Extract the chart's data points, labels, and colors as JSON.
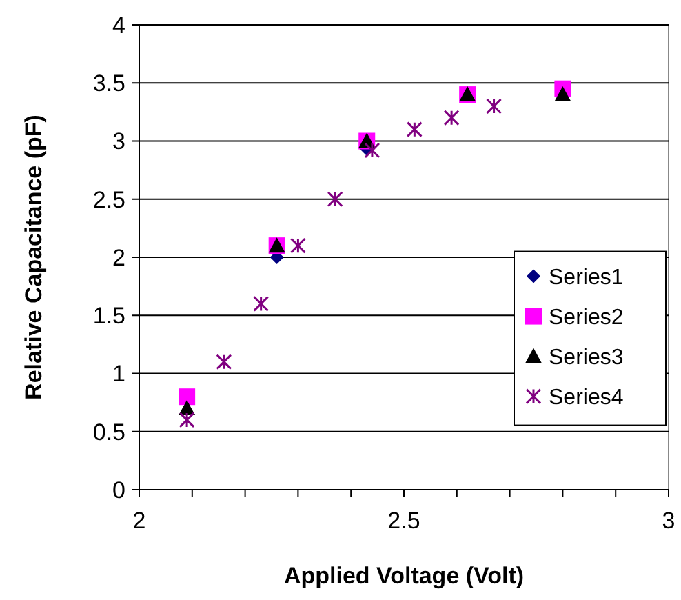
{
  "chart_data": {
    "type": "scatter",
    "xlabel": "Applied Voltage (Volt)",
    "ylabel": "Relative Capacitance (pF)",
    "xlim": [
      2,
      3
    ],
    "xticks": [
      2,
      {
        "value": 2.1,
        "label": null
      },
      {
        "value": 2.2,
        "label": null
      },
      {
        "value": 2.3,
        "label": null
      },
      {
        "value": 2.4,
        "label": null
      },
      2.5,
      {
        "value": 2.6,
        "label": null
      },
      {
        "value": 2.7,
        "label": null
      },
      {
        "value": 2.8,
        "label": null
      },
      {
        "value": 2.9,
        "label": null
      },
      3
    ],
    "ylim": [
      0,
      4
    ],
    "yticks": [
      0,
      0.5,
      1,
      1.5,
      2,
      2.5,
      3,
      3.5,
      4
    ],
    "grid": "y",
    "legend": "right",
    "series": [
      {
        "name": "Series1",
        "color": "#000080",
        "marker": "diamond",
        "x": [
          2.26,
          2.43
        ],
        "values": [
          2.0,
          2.93
        ]
      },
      {
        "name": "Series2",
        "color": "#ff00ff",
        "marker": "square",
        "x": [
          2.09,
          2.26,
          2.43,
          2.62,
          2.8
        ],
        "values": [
          0.8,
          2.1,
          3.0,
          3.4,
          3.45
        ]
      },
      {
        "name": "Series3",
        "color": "#000000",
        "marker": "triangle",
        "x": [
          2.09,
          2.26,
          2.43,
          2.62,
          2.8
        ],
        "values": [
          0.7,
          2.1,
          3.0,
          3.4,
          3.4
        ]
      },
      {
        "name": "Series4",
        "color": "#800080",
        "marker": "cross",
        "x": [
          2.09,
          2.16,
          2.23,
          2.3,
          2.37,
          2.44,
          2.52,
          2.59,
          2.67
        ],
        "values": [
          0.6,
          1.1,
          1.6,
          2.1,
          2.5,
          2.92,
          3.1,
          3.2,
          3.3
        ]
      }
    ]
  }
}
